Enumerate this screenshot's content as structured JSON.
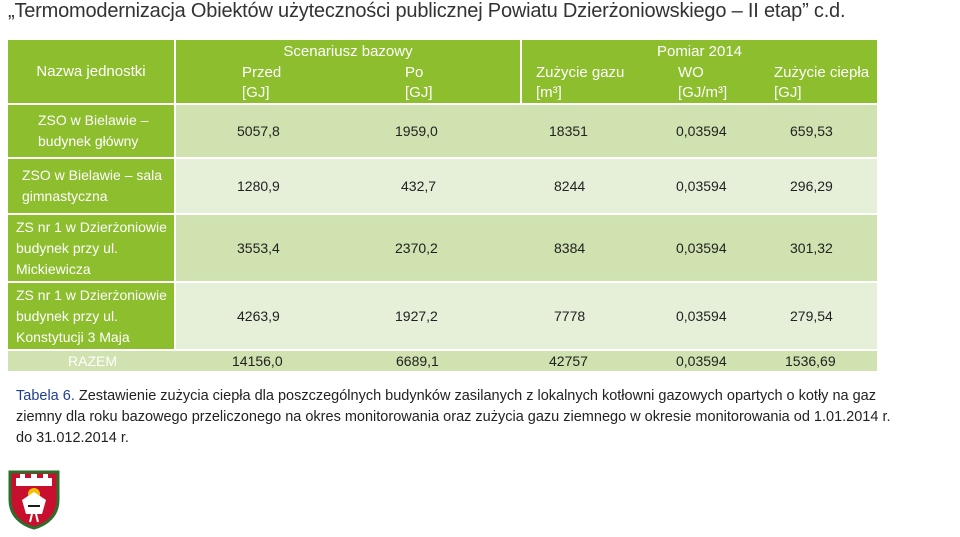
{
  "title": "„Termomodernizacja Obiektów użyteczności publicznej Powiatu Dzierżoniowskiego – II etap” c.d.",
  "table": {
    "group_headers": {
      "baseline": "Scenariusz bazowy",
      "measurement": "Pomiar 2014"
    },
    "columns": {
      "name": "Nazwa jednostki",
      "before": [
        "Przed",
        "[GJ]"
      ],
      "after": [
        "Po",
        "[GJ]"
      ],
      "gas": [
        "Zużycie gazu",
        "[m³]"
      ],
      "wo": [
        "WO",
        "[GJ/m³]"
      ],
      "heat": [
        "Zużycie ciepła",
        "[GJ]"
      ]
    },
    "rows": [
      {
        "name": [
          "ZSO w Bielawie –",
          "budynek główny"
        ],
        "before": "5057,8",
        "after": "1959,0",
        "gas": "18351",
        "wo": "0,03594",
        "heat": "659,53"
      },
      {
        "name": [
          "ZSO w Bielawie – sala",
          "gimnastyczna"
        ],
        "before": "1280,9",
        "after": "432,7",
        "gas": "8244",
        "wo": "0,03594",
        "heat": "296,29"
      },
      {
        "name": [
          "ZS nr 1 w Dzierżoniowie",
          "budynek przy ul.",
          "Mickiewicza"
        ],
        "before": "3553,4",
        "after": "2370,2",
        "gas": "8384",
        "wo": "0,03594",
        "heat": "301,32"
      },
      {
        "name": [
          "ZS nr 1 w Dzierżoniowie",
          "budynek przy ul.",
          "Konstytucji 3 Maja"
        ],
        "before": "4263,9",
        "after": "1927,2",
        "gas": "7778",
        "wo": "0,03594",
        "heat": "279,54"
      }
    ],
    "total": {
      "name": "RAZEM",
      "before": "14156,0",
      "after": "6689,1",
      "gas": "42757",
      "wo": "0,03594",
      "heat": "1536,69"
    }
  },
  "caption": {
    "label": "Tabela 6.",
    "text": "Zestawienie zużycia ciepła dla poszczególnych budynków zasilanych z lokalnych kotłowni gazowych opartych o kotły na gaz ziemny dla roku bazowego przeliczonego na okres monitorowania oraz zużycia gazu ziemnego w okresie monitorowania od 1.01.2014 r. do 31.012.2014 r."
  },
  "logo": {
    "icon": "coat-of-arms-icon"
  },
  "colors": {
    "header_green": "#8dbe2e",
    "row_dark": "#cfe2b0",
    "row_light": "#e6f0d9",
    "caption_label": "#1f3f8f"
  }
}
